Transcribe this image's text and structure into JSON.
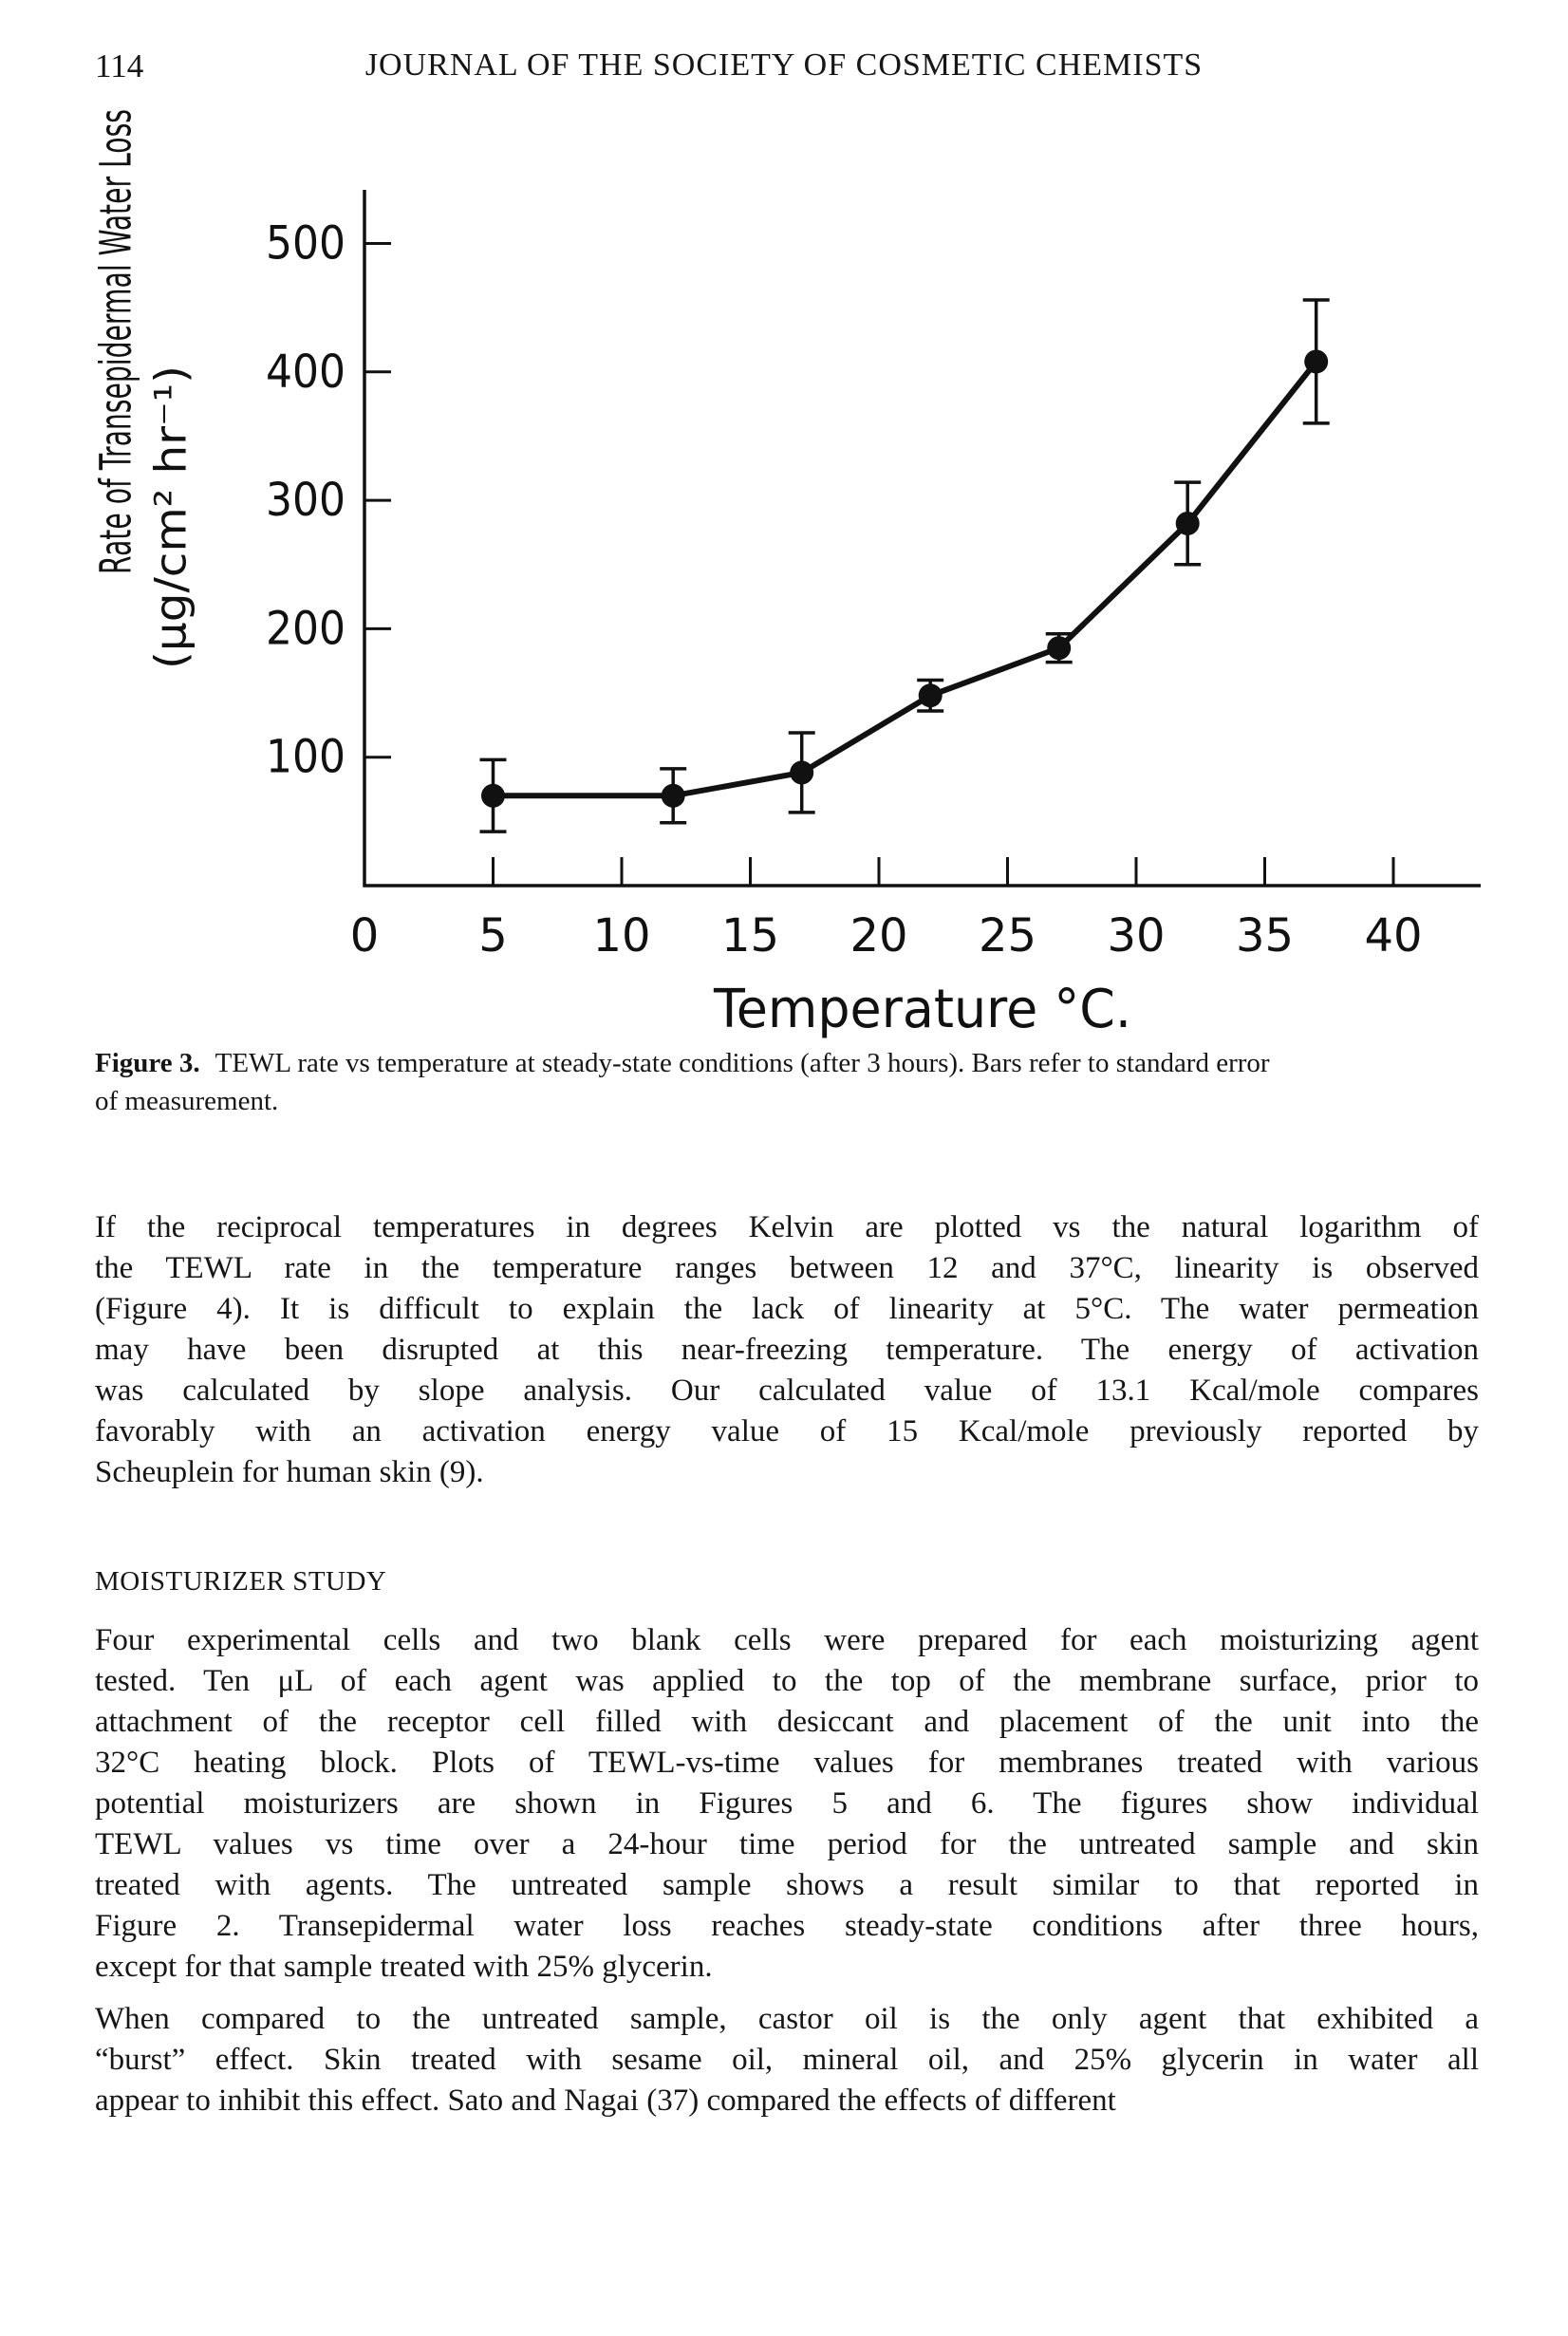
{
  "page": {
    "number": "114",
    "journal_title": "JOURNAL OF THE SOCIETY OF COSMETIC CHEMISTS"
  },
  "figure": {
    "caption_label": "Figure 3.",
    "caption_text": "TEWL rate vs temperature at steady-state conditions (after 3 hours). Bars refer to standard error",
    "caption_line2": "of measurement."
  },
  "chart_data": {
    "type": "line",
    "title": "",
    "xlabel": "Temperature  °C.",
    "ylabel_line1": "Rate of Transepidermal Water Loss",
    "ylabel_line2": "(μg/cm² hr⁻¹)",
    "x": [
      5,
      12,
      17,
      22,
      27,
      32,
      37
    ],
    "y": [
      70,
      70,
      88,
      148,
      185,
      282,
      408
    ],
    "y_err": [
      28,
      21,
      31,
      12,
      11,
      32,
      48
    ],
    "x_ticks": [
      0,
      5,
      10,
      15,
      20,
      25,
      30,
      35,
      40
    ],
    "y_ticks": [
      100,
      200,
      300,
      400,
      500
    ],
    "xlim": [
      0,
      42
    ],
    "ylim": [
      0,
      542
    ],
    "grid": false,
    "legend": "none",
    "marker": "filled-circle",
    "error_bars": "vertical-with-caps",
    "ink_color": "#111111"
  },
  "sections": {
    "heading": "MOISTURIZER STUDY",
    "para1_lines": [
      "If the reciprocal temperatures in degrees Kelvin are plotted vs the natural logarithm of",
      "the TEWL rate in the temperature ranges between 12 and 37°C, linearity is observed",
      "(Figure 4). It is difficult to explain the lack of linearity at 5°C. The water permeation",
      "may have been disrupted at this near-freezing temperature. The energy of activation",
      "was calculated by slope analysis. Our calculated value of 13.1 Kcal/mole compares",
      "favorably with an activation energy value of 15 Kcal/mole previously reported by",
      "Scheuplein for human skin (9)."
    ],
    "para2_lines": [
      "Four experimental cells and two blank cells were prepared for each moisturizing agent",
      "tested. Ten μL of each agent was applied to the top of the membrane surface, prior to",
      "attachment of the receptor cell filled with desiccant and placement of the unit into the",
      "32°C heating block. Plots of TEWL-vs-time values for membranes treated with various",
      "potential moisturizers are shown in Figures 5 and 6. The figures show individual",
      "TEWL values vs time over a 24-hour time period for the untreated sample and skin",
      "treated with agents. The untreated sample shows a result similar to that reported in",
      "Figure 2. Transepidermal water loss reaches steady-state conditions after three hours,",
      "except for that sample treated with 25% glycerin."
    ],
    "para3_lines": [
      "When compared to the untreated sample, castor oil is the only agent that exhibited a",
      "“burst” effect. Skin treated with sesame oil, mineral oil, and 25% glycerin in water all",
      "appear to inhibit this effect. Sato and Nagai (37) compared the effects of different"
    ]
  }
}
